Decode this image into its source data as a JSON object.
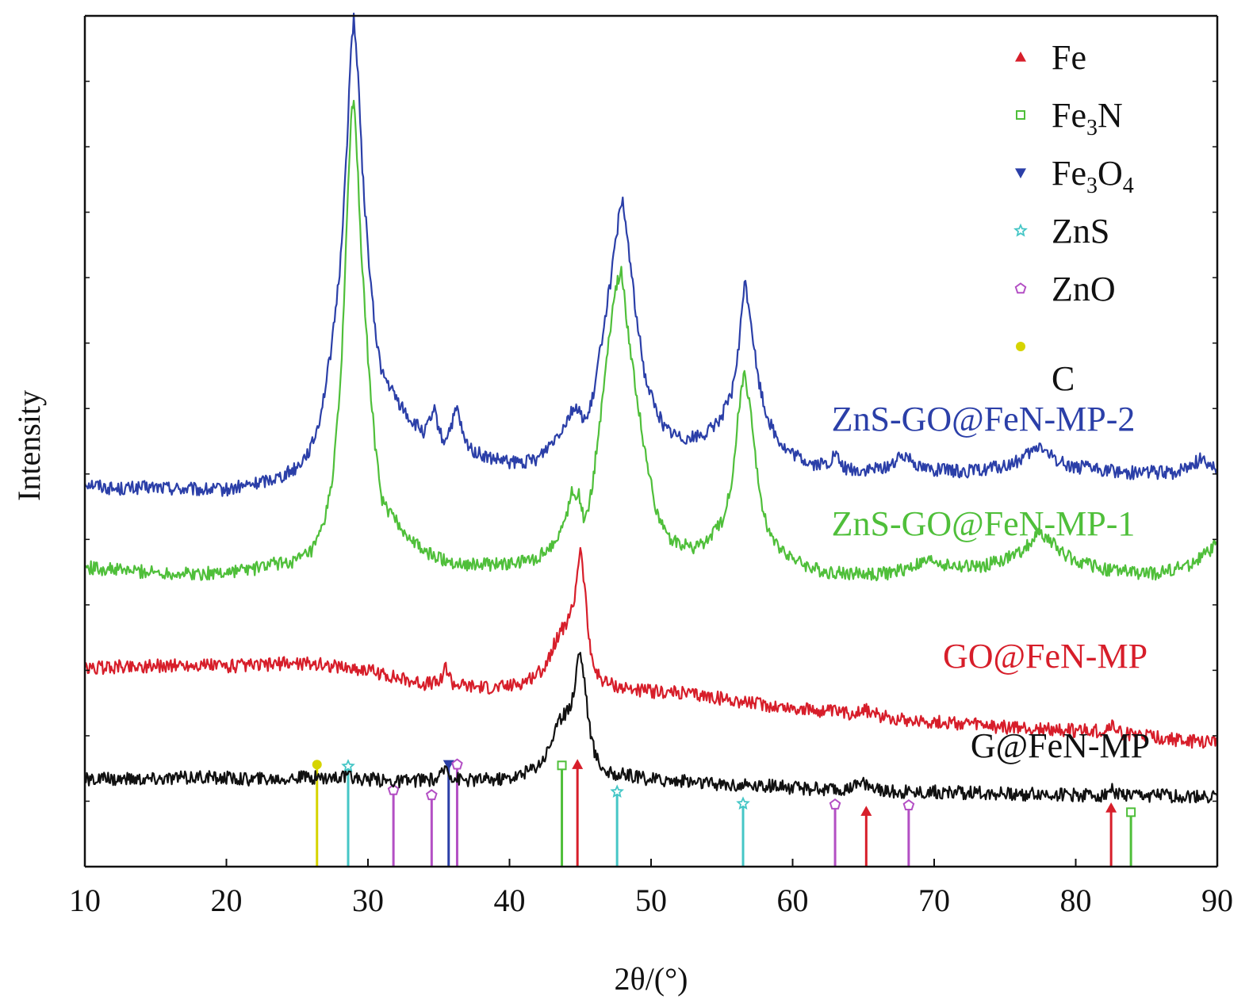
{
  "chart_data": {
    "type": "line",
    "xlabel": "2θ/(°)",
    "ylabel": "Intensity",
    "xlim": [
      10,
      90
    ],
    "ylim": [
      0,
      100
    ],
    "x_ticks": [
      10,
      20,
      30,
      40,
      50,
      60,
      70,
      80,
      90
    ],
    "x_tick_labels": [
      "10",
      "20",
      "30",
      "40",
      "50",
      "60",
      "70",
      "80",
      "90"
    ],
    "series": [
      {
        "name": "ZnS-GO@FeN-MP-2",
        "color": "#2b3fa8",
        "x": [
          10,
          12,
          15,
          18,
          20,
          22,
          23,
          24,
          25,
          26,
          26.5,
          27,
          27.5,
          28,
          28.3,
          28.6,
          28.8,
          29,
          29.3,
          29.6,
          30,
          30.5,
          31,
          32,
          33,
          34,
          34.7,
          35.3,
          35.8,
          36.3,
          36.8,
          37.5,
          38.5,
          40,
          41,
          42,
          43,
          43.8,
          44.5,
          45,
          45.5,
          46,
          46.6,
          47.2,
          47.7,
          48,
          48.4,
          49,
          49.6,
          50.3,
          51,
          52,
          53,
          54,
          55,
          55.7,
          56.2,
          56.6,
          57,
          57.5,
          58,
          58.7,
          59.5,
          60.5,
          61.5,
          62.5,
          63,
          63.5,
          64.5,
          66,
          67,
          68,
          68.5,
          69,
          70,
          71,
          72,
          73,
          74,
          75,
          76,
          77,
          77.5,
          78,
          79,
          80,
          81,
          82,
          83,
          84,
          85,
          86,
          87,
          88,
          89,
          90
        ],
        "y": [
          45.2,
          44.4,
          44.6,
          44.3,
          44.3,
          45,
          45.5,
          46,
          47,
          49.3,
          52,
          56.4,
          62,
          70,
          78,
          88,
          96,
          100,
          93,
          82,
          72.5,
          63,
          58,
          55,
          52.5,
          51,
          53.5,
          49.8,
          51.5,
          53.8,
          50,
          48.8,
          48,
          47.5,
          47.5,
          48,
          50,
          51.8,
          54,
          53.2,
          52.5,
          56,
          63,
          69.5,
          76,
          78,
          73,
          64,
          57.5,
          54,
          51.5,
          50.5,
          50.5,
          51,
          53,
          55.5,
          61,
          69,
          65,
          58,
          54,
          51,
          49,
          48,
          47.3,
          47.3,
          48.5,
          47,
          46.5,
          46.7,
          47.3,
          48.5,
          47.8,
          47,
          46.7,
          46.5,
          46.5,
          46.5,
          46.9,
          47,
          47.7,
          48.8,
          49.6,
          48.5,
          47.5,
          47,
          46.8,
          46.6,
          46.5,
          46.3,
          46.5,
          46.3,
          46.3,
          47.1,
          48,
          46.7
        ]
      },
      {
        "name": "ZnS-GO@FeN-MP-1",
        "color": "#4fbf3a",
        "x": [
          10,
          12,
          15,
          18,
          20,
          21,
          22,
          23,
          24,
          25,
          25.5,
          26,
          26.5,
          27,
          27.5,
          28,
          28.3,
          28.6,
          28.8,
          29,
          29.3,
          29.6,
          30,
          30.5,
          31,
          32,
          33,
          34,
          35,
          36,
          37,
          38,
          39,
          40,
          41,
          42,
          43,
          43.8,
          44.4,
          44.9,
          45.3,
          45.8,
          46.5,
          47,
          47.5,
          47.9,
          48.3,
          49,
          49.6,
          50.3,
          51,
          52,
          53,
          54,
          55,
          55.8,
          56.2,
          56.6,
          57,
          57.5,
          58,
          58.7,
          59.5,
          60.5,
          61.5,
          62.5,
          63.5,
          64.5,
          66,
          67,
          68,
          69,
          70,
          71,
          72,
          73,
          74,
          75,
          76,
          77,
          77.5,
          78,
          79,
          80,
          81,
          82,
          83,
          84,
          85,
          86,
          87,
          88,
          89,
          90
        ],
        "y": [
          35.2,
          34.9,
          34.6,
          34.4,
          34.6,
          34.9,
          35,
          35.5,
          35.7,
          36,
          36.5,
          37,
          38.5,
          41,
          46,
          55,
          66,
          80,
          88,
          90,
          81,
          70,
          60,
          49.5,
          43,
          40.5,
          38.5,
          37,
          36.3,
          35.8,
          35.6,
          35.5,
          35.5,
          35.5,
          35.9,
          36.3,
          37.8,
          40,
          44,
          43.8,
          40.5,
          44,
          54,
          62,
          68,
          70,
          64,
          55,
          48.5,
          42.5,
          39,
          38,
          37.5,
          38.3,
          40.5,
          46,
          54,
          58,
          54,
          46,
          41,
          38,
          37,
          35.7,
          35,
          34.6,
          34.5,
          34.4,
          34.4,
          34.5,
          35,
          35.6,
          36,
          35.4,
          35.2,
          35.3,
          35.6,
          36.1,
          36.9,
          38.5,
          39.4,
          38.5,
          37,
          36,
          35.4,
          35,
          34.8,
          34.5,
          34.4,
          34.6,
          35,
          35.5,
          36.5,
          38
        ]
      },
      {
        "name": "GO@FeN-MP",
        "color": "#d71e2a",
        "x": [
          10,
          12,
          15,
          18,
          20,
          22,
          24,
          26,
          28,
          30,
          32,
          34,
          35,
          35.5,
          36,
          37,
          38,
          39,
          40,
          41,
          42,
          42.5,
          43,
          43.5,
          44,
          44.3,
          44.6,
          44.8,
          45,
          45.3,
          45.6,
          46,
          46.5,
          47,
          48,
          49,
          50,
          52,
          54,
          56,
          58,
          60,
          62,
          64,
          65,
          66,
          68,
          70,
          72,
          74,
          76,
          78,
          80,
          82,
          82.5,
          83,
          84,
          86,
          88,
          90
        ],
        "y": [
          23.2,
          23.5,
          23.6,
          23.7,
          23.6,
          23.6,
          23.9,
          23.9,
          23.5,
          23.1,
          22.2,
          21.5,
          21.6,
          23.5,
          21.5,
          21.2,
          21.1,
          21,
          21.2,
          21.7,
          22.7,
          23.5,
          25.5,
          27.5,
          28.5,
          29.5,
          31.5,
          35,
          37.5,
          33,
          27,
          23.2,
          22,
          21.5,
          21,
          20.8,
          20.6,
          20.4,
          20,
          19.5,
          19,
          18.6,
          18.3,
          18,
          18.5,
          17.8,
          17.3,
          17,
          16.8,
          16.5,
          16.3,
          16.1,
          16,
          15.9,
          16.7,
          15.8,
          15.5,
          15.1,
          14.7,
          14.6
        ]
      },
      {
        "name": "G@FeN-MP",
        "color": "#111111",
        "x": [
          10,
          12,
          15,
          18,
          20,
          22,
          24,
          26,
          28,
          30,
          32,
          34,
          35,
          35.5,
          36,
          37,
          38,
          39,
          40,
          41,
          42,
          42.5,
          43,
          43.5,
          44,
          44.3,
          44.6,
          44.8,
          45,
          45.3,
          45.6,
          46,
          46.5,
          47,
          48,
          49,
          50,
          52,
          54,
          56,
          58,
          60,
          62,
          64,
          65,
          66,
          68,
          70,
          72,
          74,
          76,
          78,
          80,
          82,
          82.5,
          83,
          84,
          86,
          88,
          90
        ],
        "y": [
          10.2,
          10.3,
          10.3,
          10.5,
          10.4,
          10.3,
          10.4,
          10.5,
          10.5,
          10.3,
          10,
          10.2,
          10.3,
          11.8,
          10.5,
          10.2,
          10.3,
          10.3,
          10.5,
          10.9,
          12,
          13,
          15,
          17,
          18.2,
          19,
          21,
          24.5,
          25.2,
          22,
          17,
          13.5,
          11.8,
          11,
          10.8,
          10.5,
          10.3,
          10.1,
          9.8,
          9.6,
          9.5,
          9.3,
          9.1,
          9,
          9.9,
          9,
          8.8,
          8.8,
          8.7,
          8.6,
          8.5,
          8.5,
          8.4,
          8.4,
          9.2,
          8.5,
          8.3,
          8.3,
          8.2,
          8.3
        ]
      }
    ],
    "curve_labels": [
      {
        "series": "ZnS-GO@FeN-MP-2",
        "text": "ZnS-GO@FeN-MP-2",
        "color": "#2b3fa8"
      },
      {
        "series": "ZnS-GO@FeN-MP-1",
        "text": "ZnS-GO@FeN-MP-1",
        "color": "#4fbf3a"
      },
      {
        "series": "GO@FeN-MP",
        "text": "GO@FeN-MP",
        "color": "#d71e2a"
      },
      {
        "series": "G@FeN-MP",
        "text": "G@FeN-MP",
        "color": "#111111"
      }
    ],
    "legend": {
      "position": "top-right",
      "entries": [
        {
          "label": "Fe",
          "base": "Fe",
          "parts": [],
          "marker": "triangle-up",
          "color": "#d71e2a"
        },
        {
          "label": "Fe3N",
          "base": "Fe",
          "parts": [
            [
              "3",
              true
            ],
            [
              "N",
              false
            ]
          ],
          "marker": "square-open",
          "color": "#4fbf3a"
        },
        {
          "label": "Fe3O4",
          "base": "Fe",
          "parts": [
            [
              "3",
              true
            ],
            [
              "O",
              false
            ],
            [
              "4",
              true
            ]
          ],
          "marker": "triangle-down",
          "color": "#2b3fa8"
        },
        {
          "label": "ZnS",
          "base": "ZnS",
          "parts": [],
          "marker": "star-open",
          "color": "#45c6c6"
        },
        {
          "label": "ZnO",
          "base": "ZnO",
          "parts": [],
          "marker": "pentagon-open",
          "color": "#b34fc4"
        },
        {
          "label": "C",
          "base": "C",
          "parts": [],
          "marker": "circle-filled",
          "color": "#d6d400"
        }
      ]
    },
    "reference_lines": [
      {
        "phase": "C",
        "x": 26.4,
        "height": 12.0,
        "color": "#d6d400",
        "marker": "circle-filled"
      },
      {
        "phase": "ZnS",
        "x": 28.6,
        "height": 11.8,
        "color": "#45c6c6",
        "marker": "star-open"
      },
      {
        "phase": "ZnO",
        "x": 31.8,
        "height": 9.0,
        "color": "#b34fc4",
        "marker": "pentagon-open"
      },
      {
        "phase": "ZnO",
        "x": 34.5,
        "height": 8.4,
        "color": "#b34fc4",
        "marker": "pentagon-open"
      },
      {
        "phase": "Fe3O4",
        "x": 35.7,
        "height": 12.0,
        "color": "#2b3fa8",
        "marker": "triangle-down"
      },
      {
        "phase": "ZnO",
        "x": 36.3,
        "height": 12.0,
        "color": "#b34fc4",
        "marker": "pentagon-open"
      },
      {
        "phase": "Fe3N",
        "x": 43.7,
        "height": 11.9,
        "color": "#4fbf3a",
        "marker": "square-open"
      },
      {
        "phase": "Fe",
        "x": 44.8,
        "height": 12.0,
        "color": "#d71e2a",
        "marker": "triangle-up"
      },
      {
        "phase": "ZnS",
        "x": 47.6,
        "height": 8.8,
        "color": "#45c6c6",
        "marker": "star-open"
      },
      {
        "phase": "ZnS",
        "x": 56.5,
        "height": 7.4,
        "color": "#45c6c6",
        "marker": "star-open"
      },
      {
        "phase": "ZnO",
        "x": 63.0,
        "height": 7.3,
        "color": "#b34fc4",
        "marker": "pentagon-open"
      },
      {
        "phase": "Fe",
        "x": 65.2,
        "height": 6.5,
        "color": "#d71e2a",
        "marker": "triangle-up"
      },
      {
        "phase": "ZnO",
        "x": 68.2,
        "height": 7.2,
        "color": "#b34fc4",
        "marker": "pentagon-open"
      },
      {
        "phase": "Fe",
        "x": 82.5,
        "height": 6.9,
        "color": "#d71e2a",
        "marker": "triangle-up"
      },
      {
        "phase": "Fe3N",
        "x": 83.9,
        "height": 6.4,
        "color": "#4fbf3a",
        "marker": "square-open"
      }
    ],
    "grid": false
  }
}
